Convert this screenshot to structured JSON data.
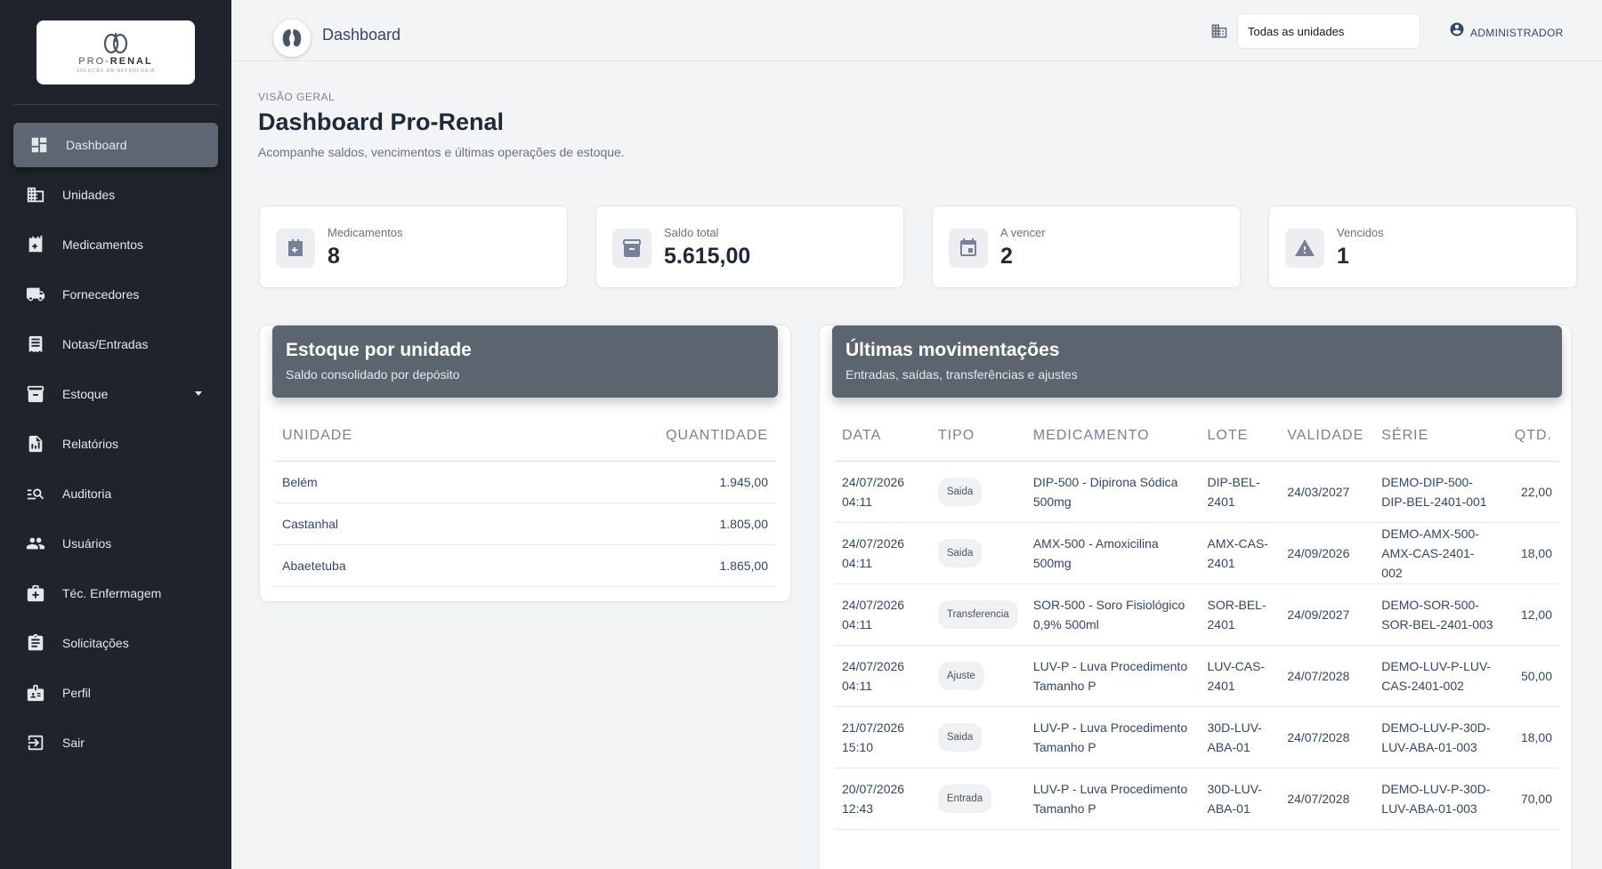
{
  "brand": {
    "logo_main": "PRO-",
    "logo_bold": "RENAL",
    "logo_sub": "SOLUÇÃO EM NEFROLOGIA"
  },
  "sidebar": {
    "items": [
      {
        "label": "Dashboard",
        "icon": "dashboard-icon",
        "active": true
      },
      {
        "label": "Unidades",
        "icon": "building-icon"
      },
      {
        "label": "Medicamentos",
        "icon": "medical-plus-icon"
      },
      {
        "label": "Fornecedores",
        "icon": "truck-icon"
      },
      {
        "label": "Notas/Entradas",
        "icon": "receipt-icon"
      },
      {
        "label": "Estoque",
        "icon": "inventory-box-icon",
        "dropdown": true
      },
      {
        "label": "Relatórios",
        "icon": "report-icon"
      },
      {
        "label": "Auditoria",
        "icon": "audit-search-icon"
      },
      {
        "label": "Usuários",
        "icon": "users-icon"
      },
      {
        "label": "Téc. Enfermagem",
        "icon": "medical-bag-icon"
      },
      {
        "label": "Solicitações",
        "icon": "clipboard-icon"
      },
      {
        "label": "Perfil",
        "icon": "profile-badge-icon"
      },
      {
        "label": "Sair",
        "icon": "logout-icon"
      }
    ]
  },
  "topbar": {
    "title": "Dashboard",
    "unit_select": "Todas as unidades",
    "user_label": "ADMINISTRADOR"
  },
  "header": {
    "eyebrow": "VISÃO GERAL",
    "title": "Dashboard Pro-Renal",
    "subtitle": "Acompanhe saldos, vencimentos e últimas operações de estoque."
  },
  "stats": [
    {
      "label": "Medicamentos",
      "value": "8",
      "icon": "medical-plus-icon"
    },
    {
      "label": "Saldo total",
      "value": "5.615,00",
      "icon": "archive-icon"
    },
    {
      "label": "A vencer",
      "value": "2",
      "icon": "calendar-icon"
    },
    {
      "label": "Vencidos",
      "value": "1",
      "icon": "warning-icon"
    }
  ],
  "stock_panel": {
    "title": "Estoque por unidade",
    "subtitle": "Saldo consolidado por depósito",
    "columns": [
      "UNIDADE",
      "QUANTIDADE"
    ],
    "rows": [
      {
        "unit": "Belém",
        "qty": "1.945,00"
      },
      {
        "unit": "Castanhal",
        "qty": "1.805,00"
      },
      {
        "unit": "Abaetetuba",
        "qty": "1.865,00"
      }
    ]
  },
  "movements_panel": {
    "title": "Últimas movimentações",
    "subtitle": "Entradas, saídas, transferências e ajustes",
    "columns": [
      "DATA",
      "TIPO",
      "MEDICAMENTO",
      "LOTE",
      "VALIDADE",
      "SÉRIE",
      "QTD."
    ],
    "rows": [
      {
        "date": "24/07/2026",
        "time": "04:11",
        "type": "Saida",
        "med1": "DIP-500 - Dipirona Sódica",
        "med2": "500mg",
        "lot1": "DIP-BEL-",
        "lot2": "2401",
        "validity": "24/03/2027",
        "serial1": "DEMO-DIP-500-",
        "serial2": "DIP-BEL-2401-001",
        "serial3": "",
        "qty": "22,00"
      },
      {
        "date": "24/07/2026",
        "time": "04:11",
        "type": "Saida",
        "med1": "AMX-500 - Amoxicilina",
        "med2": "500mg",
        "lot1": "AMX-CAS-",
        "lot2": "2401",
        "validity": "24/09/2026",
        "serial1": "DEMO-AMX-500-",
        "serial2": "AMX-CAS-2401-",
        "serial3": "002",
        "qty": "18,00"
      },
      {
        "date": "24/07/2026",
        "time": "04:11",
        "type": "Transferencia",
        "med1": "SOR-500 - Soro Fisiológico",
        "med2": "0,9% 500ml",
        "lot1": "SOR-BEL-",
        "lot2": "2401",
        "validity": "24/09/2027",
        "serial1": "DEMO-SOR-500-",
        "serial2": "SOR-BEL-2401-003",
        "serial3": "",
        "qty": "12,00"
      },
      {
        "date": "24/07/2026",
        "time": "04:11",
        "type": "Ajuste",
        "med1": "LUV-P - Luva Procedimento",
        "med2": "Tamanho P",
        "lot1": "LUV-CAS-",
        "lot2": "2401",
        "validity": "24/07/2028",
        "serial1": "DEMO-LUV-P-LUV-",
        "serial2": "CAS-2401-002",
        "serial3": "",
        "qty": "50,00"
      },
      {
        "date": "21/07/2026",
        "time": "15:10",
        "type": "Saida",
        "med1": "LUV-P - Luva Procedimento",
        "med2": "Tamanho P",
        "lot1": "30D-LUV-",
        "lot2": "ABA-01",
        "validity": "24/07/2028",
        "serial1": "DEMO-LUV-P-30D-",
        "serial2": "LUV-ABA-01-003",
        "serial3": "",
        "qty": "18,00"
      },
      {
        "date": "20/07/2026",
        "time": "12:43",
        "type": "Entrada",
        "med1": "LUV-P - Luva Procedimento",
        "med2": "Tamanho P",
        "lot1": "30D-LUV-",
        "lot2": "ABA-01",
        "validity": "24/07/2028",
        "serial1": "DEMO-LUV-P-30D-",
        "serial2": "LUV-ABA-01-003",
        "serial3": "",
        "qty": "70,00"
      }
    ]
  }
}
